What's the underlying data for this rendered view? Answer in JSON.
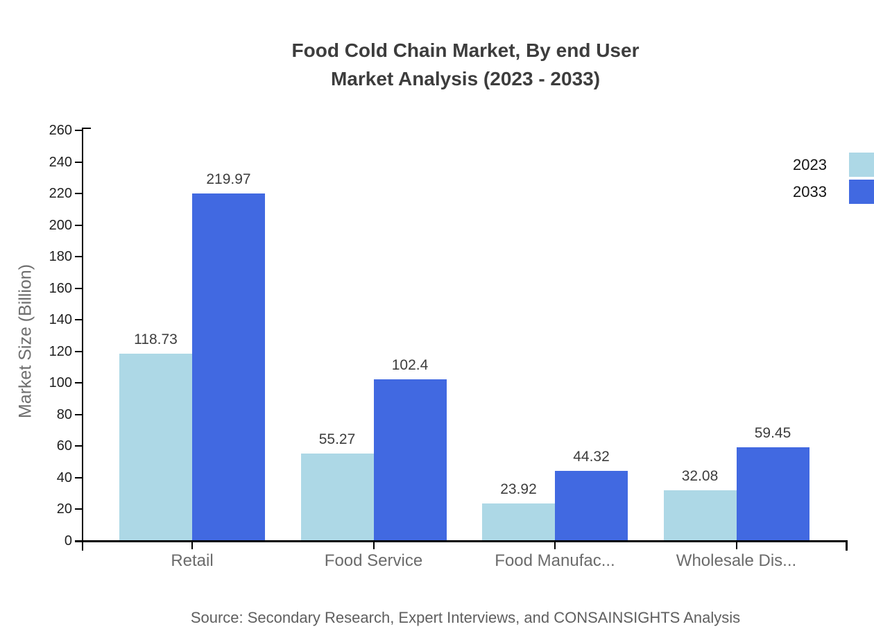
{
  "chart_data": {
    "type": "bar",
    "title_lines": [
      "Food Cold Chain Market, By end User",
      "Market Analysis (2023 - 2033)"
    ],
    "ylabel": "Market Size (Billion)",
    "categories": [
      "Retail",
      "Food Service",
      "Food Manufac...",
      "Wholesale Dis..."
    ],
    "series": [
      {
        "name": "2023",
        "color": "#ADD8E6",
        "values": [
          118.73,
          55.27,
          23.92,
          32.08
        ]
      },
      {
        "name": "2033",
        "color": "#4169E1",
        "values": [
          219.97,
          102.4,
          44.32,
          59.45
        ]
      }
    ],
    "ylim": [
      0,
      260
    ],
    "ytick_step": 20,
    "grid": false,
    "legend_position": "top-right",
    "source": "Source: Secondary Research, Expert Interviews, and CONSAINSIGHTS Analysis"
  },
  "colors": {
    "series_2023": "#ADD8E6",
    "series_2033": "#4169E1",
    "axis": "#000000",
    "title_text": "#3d3d3d",
    "value_text": "#3d3d3d",
    "tick_text": "#1f1f1f",
    "category_text": "#6b6b6b",
    "source_text": "#5f5f5f"
  }
}
